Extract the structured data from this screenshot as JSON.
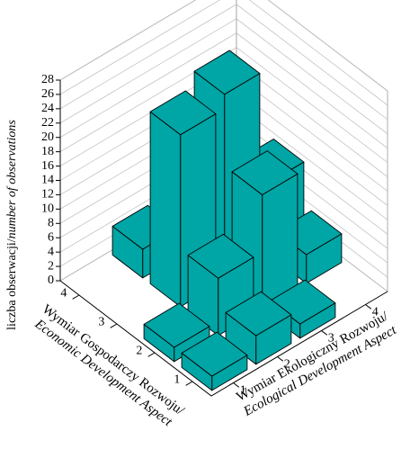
{
  "chart_data": {
    "type": "bar3d",
    "z_label": "liczba obserwacji/",
    "z_label_en": "number of observations",
    "x_label": "Wymiar Gospodarczy Rozwoju/",
    "x_label_en": "Economic Development Aspect",
    "y_label": "Wymiar Ekologiczny Rozwoju/",
    "y_label_en": "Ecological Development Aspect",
    "x_categories": [
      "1",
      "2",
      "3",
      "4"
    ],
    "y_categories": [
      "1",
      "2",
      "3",
      "4"
    ],
    "values": [
      [
        2,
        4,
        2,
        null
      ],
      [
        2,
        8,
        16,
        4
      ],
      [
        null,
        24,
        26,
        10
      ],
      [
        null,
        4,
        null,
        null
      ]
    ],
    "color": "#00a5a5",
    "zlim": [
      0,
      28
    ],
    "zticks": [
      0,
      2,
      4,
      6,
      8,
      10,
      12,
      14,
      16,
      18,
      20,
      22,
      24,
      26,
      28
    ],
    "grid": true
  }
}
